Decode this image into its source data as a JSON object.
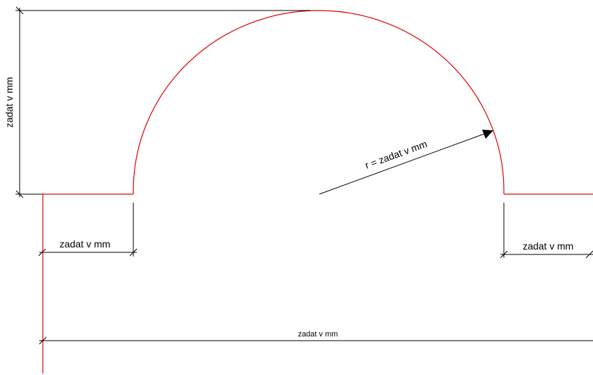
{
  "colors": {
    "profile": "#e00000",
    "dimension": "#000000",
    "background": "#ffffff"
  },
  "dimensions": {
    "height_label": "zadat v mm",
    "left_segment_label": "zadat v mm",
    "right_segment_label": "zadat v mm",
    "radius_label": "r = zadat v mm",
    "total_width_label": "zadat v mm"
  }
}
